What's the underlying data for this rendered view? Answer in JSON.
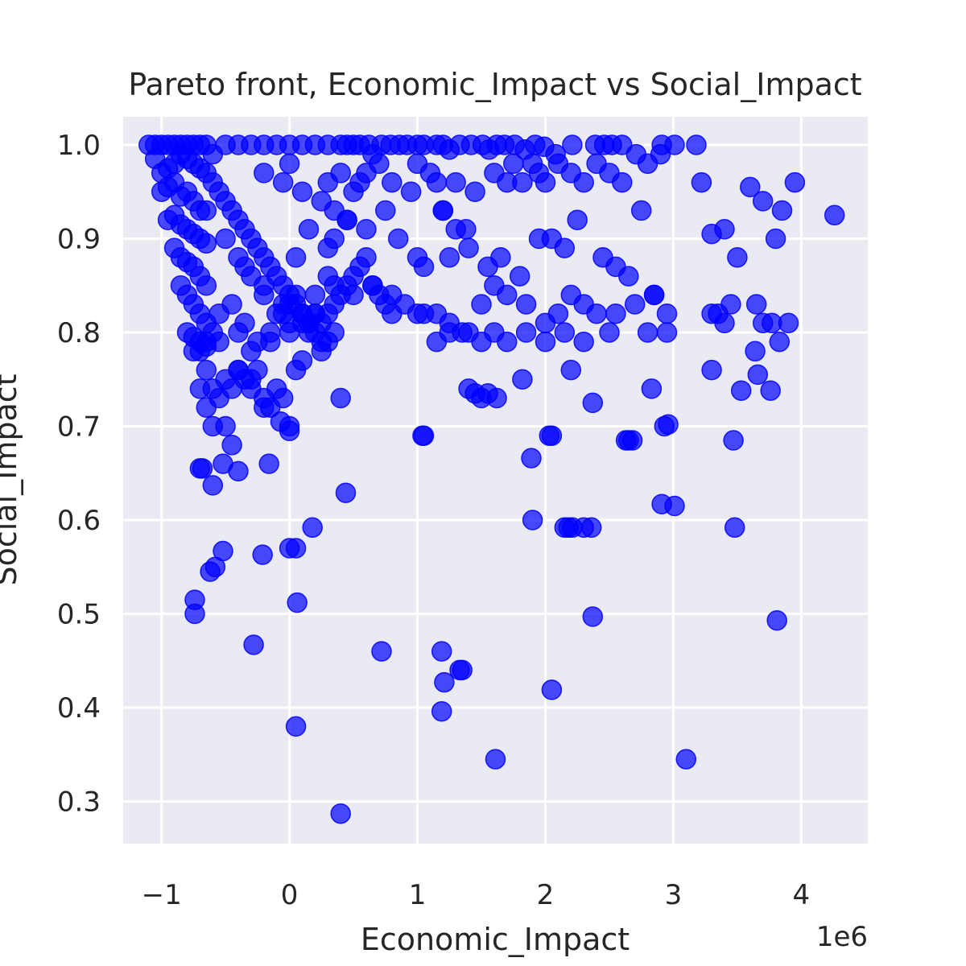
{
  "chart_data": {
    "type": "scatter",
    "title": "Pareto front, Economic_Impact vs Social_Impact",
    "xlabel": "Economic_Impact",
    "ylabel": "Social_Impact",
    "x_offset_label": "1e6",
    "x_multiplier": 1000000,
    "xlim": [
      -1300000,
      4520000
    ],
    "ylim": [
      0.255,
      1.03
    ],
    "xticks": [
      -1000000,
      0,
      1000000,
      2000000,
      3000000,
      4000000
    ],
    "xtick_labels": [
      "−1",
      "0",
      "1",
      "2",
      "3",
      "4"
    ],
    "yticks": [
      0.3,
      0.4,
      0.5,
      0.6,
      0.7,
      0.8,
      0.9,
      1.0
    ],
    "ytick_labels": [
      "0.3",
      "0.4",
      "0.5",
      "0.6",
      "0.7",
      "0.8",
      "0.9",
      "1.0"
    ],
    "grid": true,
    "marker_color": "#0000ff",
    "marker_alpha": 0.7,
    "background_color": "#eaeaf2",
    "series": [
      {
        "x": [
          -1100000,
          -1050000,
          -1000000,
          -950000,
          -900000,
          -850000,
          -800000,
          -750000,
          -700000,
          -650000,
          -600000,
          -500000,
          -400000,
          -300000,
          -200000,
          -100000,
          0,
          100000,
          200000,
          300000,
          400000,
          450000,
          500000,
          550000,
          620000,
          650000,
          720000,
          790000,
          860000,
          920000,
          1000000,
          1050000,
          1150000,
          1200000,
          1250000,
          1330000,
          1420000,
          1510000,
          1560000,
          1620000,
          1680000,
          1760000,
          1840000,
          1920000,
          1990000,
          2080000,
          2210000,
          2390000,
          2460000,
          2520000,
          2600000,
          2710000,
          2910000,
          3010000,
          3180000,
          -1050000,
          -1000000,
          -950000,
          -900000,
          -850000,
          -800000,
          -750000,
          -700000,
          -650000,
          -1000000,
          -950000,
          -900000,
          -850000,
          -800000,
          -750000,
          -700000,
          -650000,
          -950000,
          -900000,
          -850000,
          -800000,
          -750000,
          -700000,
          -650000,
          -900000,
          -850000,
          -800000,
          -750000,
          -700000,
          -650000,
          -850000,
          -800000,
          -750000,
          -700000,
          -650000,
          -800000,
          -750000,
          -700000,
          -650000,
          -750000,
          -700000,
          -650000,
          -600000,
          -550000,
          -600000,
          -550000,
          -500000,
          -450000,
          -400000,
          -350000,
          -300000,
          -250000,
          -200000,
          -150000,
          -100000,
          -50000,
          0,
          50000,
          100000,
          150000,
          200000,
          250000,
          300000,
          350000,
          400000,
          450000,
          500000,
          550000,
          600000,
          650000,
          700000,
          750000,
          800000,
          -500000,
          -400000,
          -300000,
          -200000,
          -100000,
          0,
          100000,
          200000,
          300000,
          -450000,
          -350000,
          -250000,
          -150000,
          -50000,
          50000,
          150000,
          250000,
          350000,
          -550000,
          -400000,
          -300000,
          -150000,
          0,
          150000,
          300000,
          -350000,
          -200000,
          -50000,
          100000,
          200000,
          -200000,
          -50000,
          0,
          100000,
          250000,
          300000,
          350000,
          400000,
          450000,
          500000,
          550000,
          600000,
          700000,
          800000,
          950000,
          1000000,
          1100000,
          1150000,
          1200000,
          1300000,
          1380000,
          1450000,
          1600000,
          1700000,
          1750000,
          1820000,
          1900000,
          1950000,
          2000000,
          2100000,
          2200000,
          2300000,
          2400000,
          2500000,
          2600000,
          2800000,
          2900000,
          50000,
          150000,
          300000,
          350000,
          450000,
          600000,
          750000,
          850000,
          1000000,
          1050000,
          1200000,
          1250000,
          1300000,
          1400000,
          1550000,
          1650000,
          1800000,
          1950000,
          2050000,
          2150000,
          2250000,
          2450000,
          2550000,
          2650000,
          2750000,
          0,
          200000,
          350000,
          500000,
          650000,
          800000,
          900000,
          1000000,
          1150000,
          1250000,
          1400000,
          1500000,
          1600000,
          1700000,
          1850000,
          2000000,
          2100000,
          2200000,
          2300000,
          2400000,
          2550000,
          2700000,
          2850000,
          1050000,
          1150000,
          1250000,
          1350000,
          1500000,
          1600000,
          1700000,
          1850000,
          2000000,
          2150000,
          2300000,
          2500000,
          2800000,
          2950000,
          2850000,
          2950000,
          3300000,
          3350000,
          3400000,
          3450000,
          3650000,
          3700000,
          3770000,
          3830000,
          3900000,
          3220000,
          3300000,
          3400000,
          3500000,
          3600000,
          3700000,
          3800000,
          3850000,
          3950000,
          4260000,
          -700000,
          -650000,
          -600000,
          -500000,
          -450000,
          -400000,
          -300000,
          -250000,
          -200000,
          -100000,
          0,
          50000,
          100000,
          250000,
          400000,
          -650000,
          -600000,
          -550000,
          -500000,
          -400000,
          -350000,
          -300000,
          -200000,
          -150000,
          -50000,
          1050000,
          1400000,
          1450000,
          1500000,
          1550000,
          1620000,
          1820000,
          2050000,
          2200000,
          2370000,
          2630000,
          2680000,
          2830000,
          2930000,
          3300000,
          3470000,
          3530000,
          3760000,
          3660000,
          3640000,
          -700000,
          -680000,
          -600000,
          -520000,
          -450000,
          -400000,
          -160000,
          -70000,
          0,
          50000,
          180000,
          440000,
          -740000,
          -740000,
          -620000,
          -580000,
          -520000,
          -280000,
          -210000,
          0,
          60000,
          50000,
          720000,
          1190000,
          1210000,
          1330000,
          1350000,
          1190000,
          2050000,
          1610000,
          3100000,
          2370000,
          3810000,
          1890000,
          1900000,
          2030000,
          2150000,
          2180000,
          2210000,
          2300000,
          2360000,
          2910000,
          3010000,
          3480000,
          400000,
          2650000,
          1040000,
          2960000
        ],
        "y": [
          1.0,
          1.0,
          1.0,
          1.0,
          1.0,
          1.0,
          1.0,
          1.0,
          1.0,
          1.0,
          0.99,
          1.0,
          1.0,
          1.0,
          1.0,
          1.0,
          1.0,
          1.0,
          1.0,
          1.0,
          1.0,
          1.0,
          1.0,
          1.0,
          1.0,
          0.99,
          1.0,
          1.0,
          1.0,
          1.0,
          1.0,
          1.0,
          1.0,
          1.0,
          0.995,
          1.0,
          1.0,
          1.0,
          0.995,
          1.0,
          1.0,
          1.0,
          0.995,
          1.0,
          0.998,
          0.99,
          1.0,
          1.0,
          1.0,
          1.0,
          1.0,
          0.99,
          1.0,
          1.0,
          1.0,
          0.985,
          0.97,
          0.975,
          0.98,
          0.99,
          0.985,
          0.98,
          0.975,
          0.97,
          0.95,
          0.955,
          0.96,
          0.945,
          0.95,
          0.94,
          0.93,
          0.93,
          0.92,
          0.925,
          0.915,
          0.91,
          0.905,
          0.9,
          0.895,
          0.89,
          0.88,
          0.875,
          0.87,
          0.86,
          0.85,
          0.85,
          0.84,
          0.83,
          0.82,
          0.81,
          0.8,
          0.795,
          0.79,
          0.785,
          0.78,
          0.78,
          0.79,
          0.8,
          0.79,
          0.96,
          0.95,
          0.94,
          0.93,
          0.92,
          0.91,
          0.9,
          0.89,
          0.88,
          0.87,
          0.86,
          0.85,
          0.84,
          0.83,
          0.82,
          0.81,
          0.8,
          0.81,
          0.82,
          0.83,
          0.84,
          0.85,
          0.86,
          0.87,
          0.88,
          0.85,
          0.84,
          0.83,
          0.82,
          0.9,
          0.88,
          0.86,
          0.84,
          0.82,
          0.8,
          0.82,
          0.84,
          0.86,
          0.83,
          0.81,
          0.79,
          0.8,
          0.82,
          0.84,
          0.81,
          0.79,
          0.8,
          0.82,
          0.8,
          0.78,
          0.79,
          0.81,
          0.8,
          0.79,
          0.87,
          0.85,
          0.83,
          0.81,
          0.82,
          0.97,
          0.96,
          0.98,
          0.95,
          0.94,
          0.96,
          0.93,
          0.97,
          0.92,
          0.95,
          0.96,
          0.97,
          0.98,
          0.96,
          0.95,
          0.98,
          0.97,
          0.96,
          0.93,
          0.96,
          0.91,
          0.95,
          0.97,
          0.96,
          0.98,
          0.96,
          0.98,
          0.97,
          0.96,
          0.98,
          0.97,
          0.96,
          0.98,
          0.97,
          0.96,
          0.98,
          0.99,
          0.88,
          0.91,
          0.89,
          0.9,
          0.92,
          0.91,
          0.93,
          0.9,
          0.88,
          0.87,
          0.93,
          0.88,
          0.91,
          0.89,
          0.87,
          0.88,
          0.86,
          0.9,
          0.9,
          0.89,
          0.92,
          0.88,
          0.87,
          0.86,
          0.93,
          0.83,
          0.82,
          0.85,
          0.84,
          0.85,
          0.84,
          0.83,
          0.82,
          0.82,
          0.81,
          0.8,
          0.83,
          0.85,
          0.84,
          0.83,
          0.81,
          0.82,
          0.84,
          0.83,
          0.82,
          0.82,
          0.83,
          0.84,
          0.82,
          0.79,
          0.8,
          0.8,
          0.79,
          0.8,
          0.79,
          0.8,
          0.79,
          0.8,
          0.79,
          0.8,
          0.8,
          0.82,
          0.84,
          0.8,
          0.82,
          0.82,
          0.81,
          0.83,
          0.83,
          0.81,
          0.81,
          0.79,
          0.81,
          0.96,
          0.905,
          0.91,
          0.88,
          0.955,
          0.94,
          0.9,
          0.93,
          0.96,
          0.925,
          0.74,
          0.72,
          0.7,
          0.7,
          0.74,
          0.76,
          0.75,
          0.76,
          0.72,
          0.74,
          0.7,
          0.76,
          0.77,
          0.78,
          0.73,
          0.76,
          0.74,
          0.73,
          0.75,
          0.76,
          0.75,
          0.74,
          0.73,
          0.72,
          0.73,
          0.69,
          0.74,
          0.735,
          0.73,
          0.735,
          0.73,
          0.75,
          0.69,
          0.76,
          0.725,
          0.685,
          0.685,
          0.74,
          0.7,
          0.76,
          0.685,
          0.738,
          0.738,
          0.755,
          0.78,
          0.655,
          0.655,
          0.637,
          0.66,
          0.68,
          0.652,
          0.66,
          0.705,
          0.695,
          0.57,
          0.592,
          0.629,
          0.5,
          0.515,
          0.545,
          0.55,
          0.567,
          0.467,
          0.563,
          0.57,
          0.512,
          0.38,
          0.46,
          0.46,
          0.427,
          0.44,
          0.44,
          0.396,
          0.419,
          0.345,
          0.345,
          0.497,
          0.493,
          0.666,
          0.6,
          0.69,
          0.592,
          0.592,
          0.592,
          0.592,
          0.592,
          0.617,
          0.615,
          0.592,
          0.287,
          0.685,
          0.69,
          0.702
        ]
      }
    ]
  }
}
